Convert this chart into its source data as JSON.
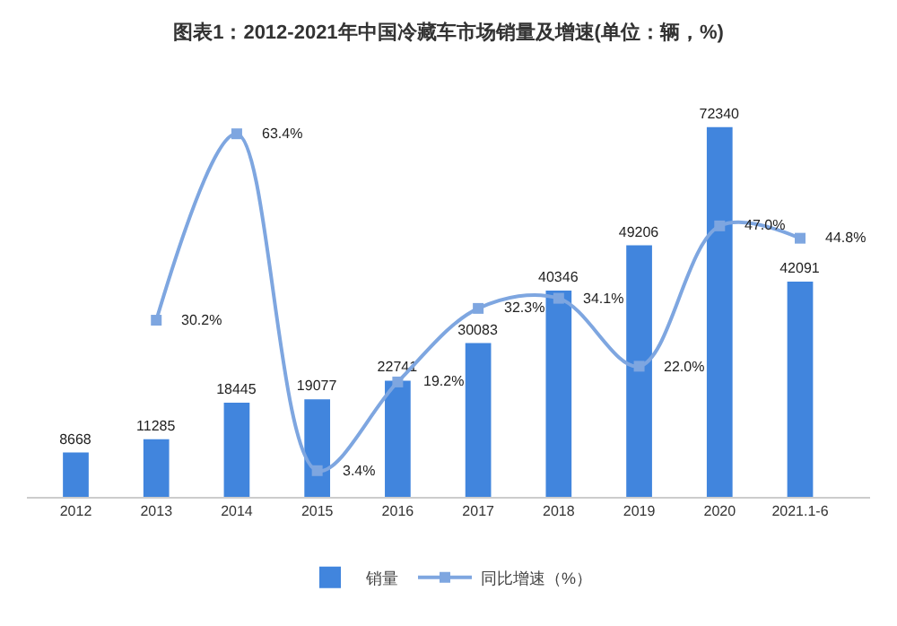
{
  "chart_data": {
    "type": "bar",
    "title": "图表1：2012-2021年中国冷藏车市场销量及增速(单位：辆，%)",
    "categories": [
      "2012",
      "2013",
      "2014",
      "2015",
      "2016",
      "2017",
      "2018",
      "2019",
      "2020",
      "2021.1-6"
    ],
    "series": [
      {
        "name": "销量",
        "color": "#4185dd",
        "values": [
          8668,
          11285,
          18445,
          19077,
          22741,
          30083,
          40346,
          49206,
          72340,
          42091
        ],
        "data_labels": true
      },
      {
        "name": "同比增速（%）",
        "type": "line",
        "axis": "y2",
        "color": "#7ea6e0",
        "marker": "square",
        "values": [
          null,
          30.2,
          63.4,
          3.4,
          19.2,
          32.3,
          34.1,
          22.0,
          47.0,
          44.8
        ],
        "value_labels": [
          null,
          "30.2%",
          "63.4%",
          "3.4%",
          "19.2%",
          "32.3%",
          "34.1%",
          "22.0%",
          "47.0%",
          "44.8%"
        ]
      }
    ],
    "tick_labels": "x",
    "grid": false,
    "legend": "bottom"
  }
}
